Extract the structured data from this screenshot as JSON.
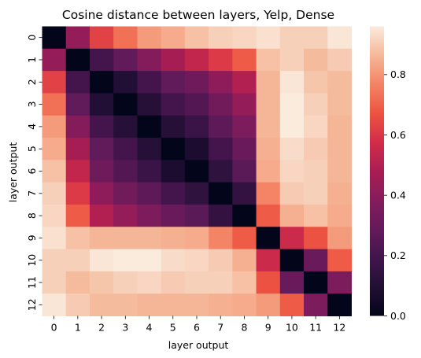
{
  "chart_data": {
    "type": "heatmap",
    "title": "Cosine distance between layers, Yelp, Dense",
    "xlabel": "layer output",
    "ylabel": "layer output",
    "x_categories": [
      "0",
      "1",
      "2",
      "3",
      "4",
      "5",
      "6",
      "7",
      "8",
      "9",
      "10",
      "11",
      "12"
    ],
    "y_categories": [
      "0",
      "1",
      "2",
      "3",
      "4",
      "5",
      "6",
      "7",
      "8",
      "9",
      "10",
      "11",
      "12"
    ],
    "colorbar": {
      "min": 0.0,
      "max": 0.96,
      "ticks": [
        "0.0",
        "0.2",
        "0.4",
        "0.6",
        "0.8"
      ],
      "tick_values": [
        0.0,
        0.2,
        0.4,
        0.6,
        0.8
      ]
    },
    "colormap": "rocket",
    "values": [
      [
        0.0,
        0.42,
        0.63,
        0.73,
        0.81,
        0.84,
        0.88,
        0.91,
        0.92,
        0.94,
        0.91,
        0.91,
        0.95
      ],
      [
        0.42,
        0.0,
        0.2,
        0.28,
        0.38,
        0.47,
        0.54,
        0.61,
        0.69,
        0.88,
        0.91,
        0.87,
        0.9
      ],
      [
        0.63,
        0.2,
        0.0,
        0.1,
        0.2,
        0.28,
        0.32,
        0.41,
        0.5,
        0.86,
        0.95,
        0.89,
        0.87
      ],
      [
        0.73,
        0.28,
        0.1,
        0.0,
        0.11,
        0.2,
        0.24,
        0.33,
        0.42,
        0.86,
        0.96,
        0.91,
        0.87
      ],
      [
        0.81,
        0.38,
        0.2,
        0.11,
        0.0,
        0.11,
        0.17,
        0.27,
        0.36,
        0.86,
        0.96,
        0.92,
        0.86
      ],
      [
        0.84,
        0.47,
        0.28,
        0.2,
        0.11,
        0.0,
        0.08,
        0.2,
        0.3,
        0.85,
        0.93,
        0.9,
        0.86
      ],
      [
        0.88,
        0.54,
        0.32,
        0.24,
        0.17,
        0.08,
        0.0,
        0.14,
        0.26,
        0.84,
        0.92,
        0.91,
        0.86
      ],
      [
        0.91,
        0.61,
        0.41,
        0.33,
        0.27,
        0.2,
        0.14,
        0.0,
        0.15,
        0.77,
        0.9,
        0.91,
        0.85
      ],
      [
        0.92,
        0.69,
        0.5,
        0.42,
        0.36,
        0.3,
        0.26,
        0.15,
        0.0,
        0.69,
        0.85,
        0.88,
        0.84
      ],
      [
        0.94,
        0.88,
        0.86,
        0.86,
        0.86,
        0.85,
        0.84,
        0.77,
        0.69,
        0.0,
        0.56,
        0.67,
        0.81
      ],
      [
        0.91,
        0.91,
        0.95,
        0.96,
        0.96,
        0.93,
        0.92,
        0.9,
        0.85,
        0.56,
        0.0,
        0.3,
        0.69
      ],
      [
        0.91,
        0.87,
        0.89,
        0.91,
        0.92,
        0.9,
        0.91,
        0.91,
        0.88,
        0.67,
        0.3,
        0.0,
        0.36
      ],
      [
        0.95,
        0.9,
        0.87,
        0.87,
        0.86,
        0.86,
        0.86,
        0.85,
        0.84,
        0.81,
        0.69,
        0.36,
        0.0
      ]
    ]
  }
}
